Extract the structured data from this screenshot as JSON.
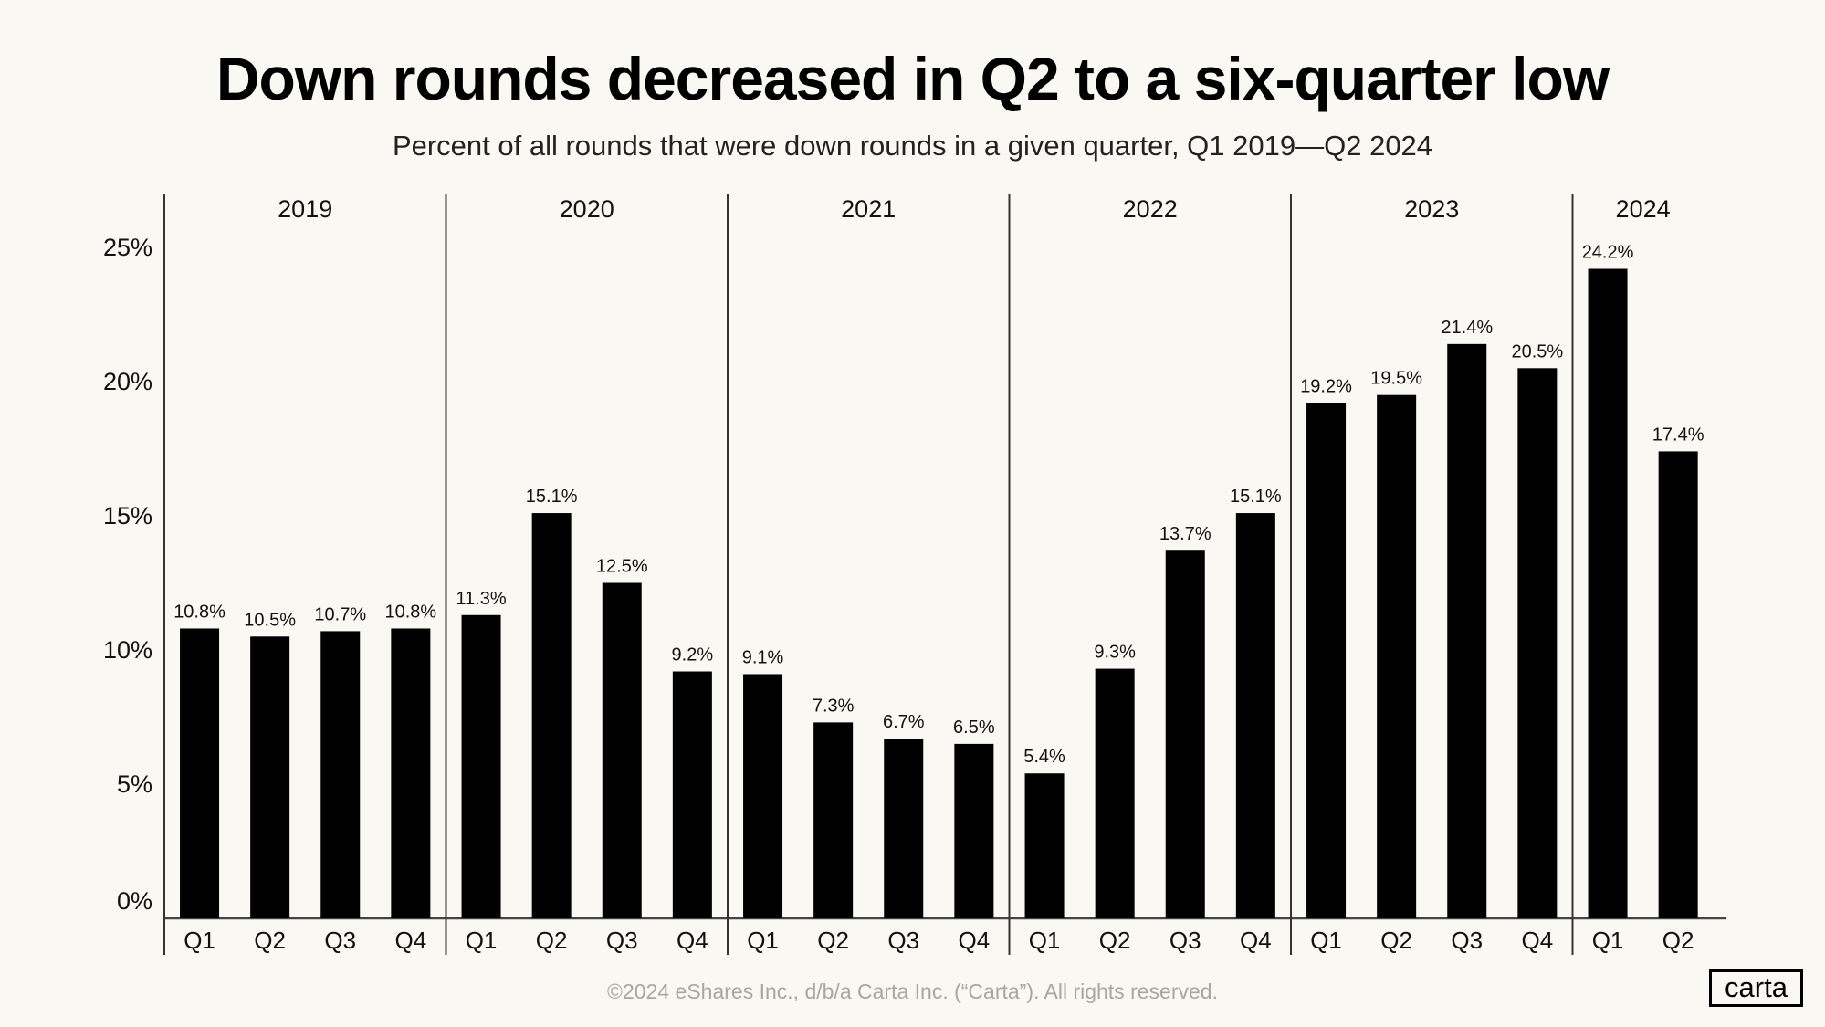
{
  "title": "Down rounds decreased in Q2 to a six-quarter low",
  "subtitle": "Percent of all rounds that were down rounds in a given quarter, Q1 2019—Q2 2024",
  "footer": "©2024 eShares Inc., d/b/a Carta Inc. (“Carta”). All rights reserved.",
  "logo": "carta",
  "colors": {
    "background": "#faf8f3",
    "bar": "#000000",
    "footer_text": "#a8a6a2"
  },
  "chart_data": {
    "type": "bar",
    "title": "Down rounds decreased in Q2 to a six-quarter low",
    "subtitle": "Percent of all rounds that were down rounds in a given quarter, Q1 2019—Q2 2024",
    "xlabel": "",
    "ylabel": "",
    "ylim": [
      0,
      25
    ],
    "yticks": [
      "0%",
      "5%",
      "10%",
      "15%",
      "20%",
      "25%"
    ],
    "grid": false,
    "groups": [
      {
        "year": "2019",
        "categories": [
          "Q1",
          "Q2",
          "Q3",
          "Q4"
        ],
        "values": [
          10.8,
          10.5,
          10.7,
          10.8
        ],
        "labels": [
          "10.8%",
          "10.5%",
          "10.7%",
          "10.8%"
        ]
      },
      {
        "year": "2020",
        "categories": [
          "Q1",
          "Q2",
          "Q3",
          "Q4"
        ],
        "values": [
          11.3,
          15.1,
          12.5,
          9.2
        ],
        "labels": [
          "11.3%",
          "15.1%",
          "12.5%",
          "9.2%"
        ]
      },
      {
        "year": "2021",
        "categories": [
          "Q1",
          "Q2",
          "Q3",
          "Q4"
        ],
        "values": [
          9.1,
          7.3,
          6.7,
          6.5
        ],
        "labels": [
          "9.1%",
          "7.3%",
          "6.7%",
          "6.5%"
        ]
      },
      {
        "year": "2022",
        "categories": [
          "Q1",
          "Q2",
          "Q3",
          "Q4"
        ],
        "values": [
          5.4,
          9.3,
          13.7,
          15.1
        ],
        "labels": [
          "5.4%",
          "9.3%",
          "13.7%",
          "15.1%"
        ]
      },
      {
        "year": "2023",
        "categories": [
          "Q1",
          "Q2",
          "Q3",
          "Q4"
        ],
        "values": [
          19.2,
          19.5,
          21.4,
          20.5
        ],
        "labels": [
          "19.2%",
          "19.5%",
          "21.4%",
          "20.5%"
        ]
      },
      {
        "year": "2024",
        "categories": [
          "Q1",
          "Q2"
        ],
        "values": [
          24.2,
          17.4
        ],
        "labels": [
          "24.2%",
          "17.4%"
        ]
      }
    ]
  }
}
